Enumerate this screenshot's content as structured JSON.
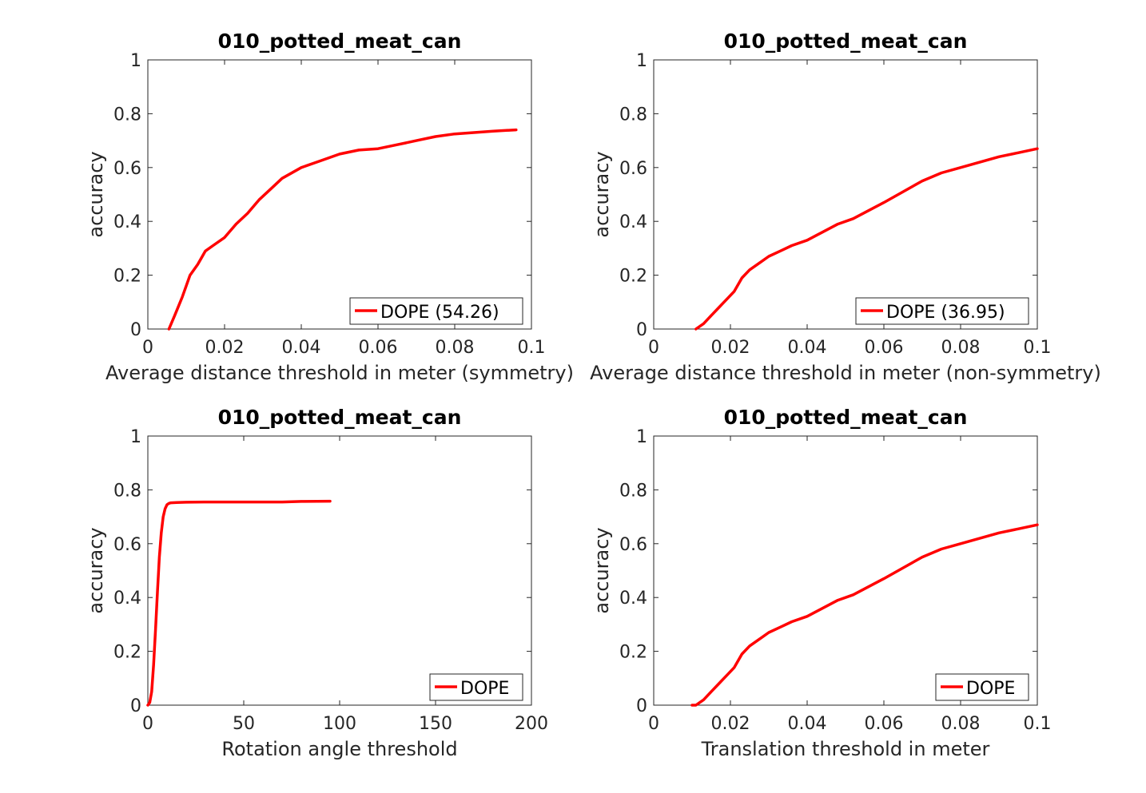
{
  "chart_data": [
    {
      "type": "line",
      "title": "010_potted_meat_can",
      "xlabel": "Average distance threshold in meter (symmetry)",
      "ylabel": "accuracy",
      "xlim": [
        0,
        0.1
      ],
      "ylim": [
        0,
        1
      ],
      "xticks": [
        "0",
        "0.02",
        "0.04",
        "0.06",
        "0.08",
        "0.1"
      ],
      "yticks": [
        "0",
        "0.2",
        "0.4",
        "0.6",
        "0.8",
        "1"
      ],
      "legend_position": "bottom-right",
      "series": [
        {
          "name": "DOPE (54.26)",
          "color": "#ff0000",
          "x": [
            0.0055,
            0.007,
            0.009,
            0.011,
            0.013,
            0.015,
            0.017,
            0.02,
            0.023,
            0.026,
            0.029,
            0.032,
            0.035,
            0.04,
            0.045,
            0.05,
            0.055,
            0.06,
            0.065,
            0.07,
            0.075,
            0.08,
            0.085,
            0.09,
            0.096
          ],
          "y": [
            0,
            0.05,
            0.12,
            0.2,
            0.24,
            0.29,
            0.31,
            0.34,
            0.39,
            0.43,
            0.48,
            0.52,
            0.56,
            0.6,
            0.625,
            0.65,
            0.665,
            0.67,
            0.685,
            0.7,
            0.715,
            0.725,
            0.73,
            0.735,
            0.74
          ]
        }
      ]
    },
    {
      "type": "line",
      "title": "010_potted_meat_can",
      "xlabel": "Average distance threshold in meter (non-symmetry)",
      "ylabel": "accuracy",
      "xlim": [
        0,
        0.1
      ],
      "ylim": [
        0,
        1
      ],
      "xticks": [
        "0",
        "0.02",
        "0.04",
        "0.06",
        "0.08",
        "0.1"
      ],
      "yticks": [
        "0",
        "0.2",
        "0.4",
        "0.6",
        "0.8",
        "1"
      ],
      "legend_position": "bottom-right",
      "series": [
        {
          "name": "DOPE (36.95)",
          "color": "#ff0000",
          "x": [
            0.011,
            0.013,
            0.015,
            0.017,
            0.019,
            0.021,
            0.023,
            0.025,
            0.028,
            0.03,
            0.033,
            0.036,
            0.04,
            0.044,
            0.048,
            0.052,
            0.056,
            0.06,
            0.065,
            0.07,
            0.075,
            0.08,
            0.085,
            0.09,
            0.095,
            0.1
          ],
          "y": [
            0,
            0.02,
            0.05,
            0.08,
            0.11,
            0.14,
            0.19,
            0.22,
            0.25,
            0.27,
            0.29,
            0.31,
            0.33,
            0.36,
            0.39,
            0.41,
            0.44,
            0.47,
            0.51,
            0.55,
            0.58,
            0.6,
            0.62,
            0.64,
            0.655,
            0.67
          ]
        }
      ]
    },
    {
      "type": "line",
      "title": "010_potted_meat_can",
      "xlabel": "Rotation angle threshold",
      "ylabel": "accuracy",
      "xlim": [
        0,
        200
      ],
      "ylim": [
        0,
        1
      ],
      "xticks": [
        "0",
        "50",
        "100",
        "150",
        "200"
      ],
      "yticks": [
        "0",
        "0.2",
        "0.4",
        "0.6",
        "0.8",
        "1"
      ],
      "legend_position": "bottom-right",
      "series": [
        {
          "name": "DOPE",
          "color": "#ff0000",
          "x": [
            0,
            1,
            2,
            3,
            4,
            5,
            6,
            7,
            8,
            9,
            10,
            11,
            12,
            15,
            20,
            30,
            50,
            70,
            80,
            95
          ],
          "y": [
            0,
            0.01,
            0.05,
            0.15,
            0.28,
            0.42,
            0.55,
            0.64,
            0.7,
            0.73,
            0.745,
            0.75,
            0.752,
            0.753,
            0.754,
            0.755,
            0.755,
            0.755,
            0.757,
            0.758
          ]
        }
      ]
    },
    {
      "type": "line",
      "title": "010_potted_meat_can",
      "xlabel": "Translation threshold in meter",
      "ylabel": "accuracy",
      "xlim": [
        0,
        0.1
      ],
      "ylim": [
        0,
        1
      ],
      "xticks": [
        "0",
        "0.02",
        "0.04",
        "0.06",
        "0.08",
        "0.1"
      ],
      "yticks": [
        "0",
        "0.2",
        "0.4",
        "0.6",
        "0.8",
        "1"
      ],
      "legend_position": "bottom-right",
      "series": [
        {
          "name": "DOPE",
          "color": "#ff0000",
          "x": [
            0.01,
            0.011,
            0.013,
            0.015,
            0.017,
            0.019,
            0.021,
            0.023,
            0.025,
            0.028,
            0.03,
            0.033,
            0.036,
            0.04,
            0.044,
            0.048,
            0.052,
            0.056,
            0.06,
            0.065,
            0.07,
            0.075,
            0.08,
            0.085,
            0.09,
            0.095,
            0.1
          ],
          "y": [
            0,
            0,
            0.02,
            0.05,
            0.08,
            0.11,
            0.14,
            0.19,
            0.22,
            0.25,
            0.27,
            0.29,
            0.31,
            0.33,
            0.36,
            0.39,
            0.41,
            0.44,
            0.47,
            0.51,
            0.55,
            0.58,
            0.6,
            0.62,
            0.64,
            0.655,
            0.67
          ]
        }
      ]
    }
  ]
}
